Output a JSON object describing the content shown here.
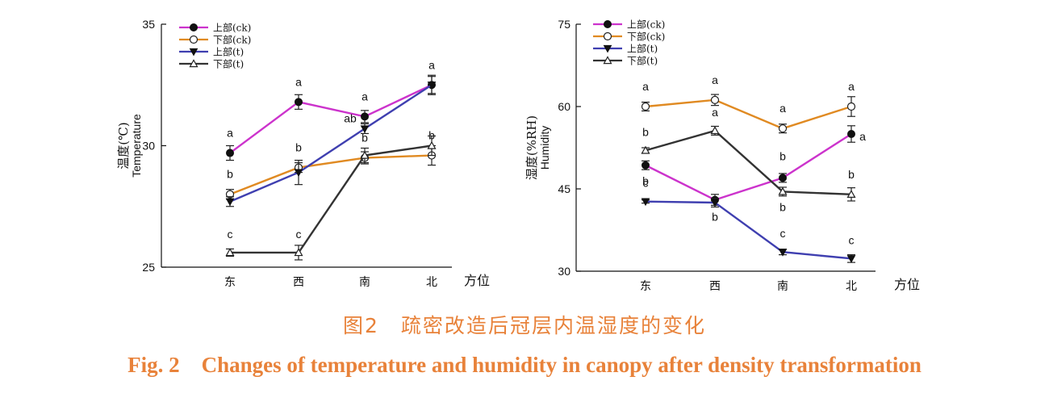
{
  "chart_data": [
    {
      "type": "line",
      "ylabel": "温度(℃)",
      "ylabel2": "Temperature",
      "xlabel": "方位",
      "categories": [
        "东",
        "西",
        "南",
        "北"
      ],
      "ylim": [
        25,
        35
      ],
      "yticks": [
        25,
        30,
        35
      ],
      "legend": "top-left",
      "series": [
        {
          "name": "上部(ck)",
          "color": "#cc33cc",
          "marker": "filled-circle",
          "values": [
            29.7,
            31.8,
            31.2,
            32.5
          ],
          "errors": [
            0.3,
            0.3,
            0.25,
            0.35
          ],
          "letters": [
            "a",
            "a",
            "a",
            "a"
          ]
        },
        {
          "name": "下部(ck)",
          "color": "#e08a22",
          "marker": "open-circle",
          "values": [
            28.0,
            29.1,
            29.5,
            29.6
          ],
          "errors": [
            0.2,
            0.2,
            0.25,
            0.4
          ],
          "letters": [
            "b",
            "b",
            "b",
            "b"
          ]
        },
        {
          "name": "上部(t)",
          "color": "#3f3fb0",
          "marker": "filled-triangle-down",
          "values": [
            27.7,
            28.9,
            30.7,
            32.5
          ],
          "errors": [
            0.2,
            0.5,
            0.2,
            0.4
          ],
          "letters": [
            "",
            "",
            "ab",
            ""
          ]
        },
        {
          "name": "下部(t)",
          "color": "#333333",
          "marker": "open-triangle-up",
          "values": [
            25.6,
            25.6,
            29.6,
            30.0
          ],
          "errors": [
            0.15,
            0.3,
            0.3,
            0.4
          ],
          "letters": [
            "c",
            "c",
            "",
            ""
          ]
        }
      ]
    },
    {
      "type": "line",
      "ylabel": "湿度(%RH)",
      "ylabel2": "Humidity",
      "xlabel": "方位",
      "categories": [
        "东",
        "西",
        "南",
        "北"
      ],
      "ylim": [
        30,
        75
      ],
      "yticks": [
        30,
        45,
        60,
        75
      ],
      "legend": "top-left",
      "series": [
        {
          "name": "上部(ck)",
          "color": "#cc33cc",
          "marker": "filled-circle",
          "values": [
            49.3,
            43.0,
            47.0,
            55.0
          ],
          "errors": [
            0.8,
            1.0,
            0.8,
            1.5
          ],
          "letters": [
            "b",
            "b",
            "b",
            "a"
          ]
        },
        {
          "name": "下部(ck)",
          "color": "#e08a22",
          "marker": "open-circle",
          "values": [
            60.0,
            61.2,
            56.0,
            60.0
          ],
          "errors": [
            0.8,
            1.0,
            0.8,
            1.8
          ],
          "letters": [
            "a",
            "a",
            "a",
            "a"
          ]
        },
        {
          "name": "上部(t)",
          "color": "#3f3fb0",
          "marker": "filled-triangle-down",
          "values": [
            42.7,
            42.5,
            33.5,
            32.3
          ],
          "errors": [
            0.3,
            0.8,
            0.5,
            0.7
          ],
          "letters": [
            "c",
            "",
            "c",
            "c"
          ]
        },
        {
          "name": "下部(t)",
          "color": "#333333",
          "marker": "open-triangle-up",
          "values": [
            52.0,
            55.6,
            44.5,
            44.0
          ],
          "errors": [
            0.5,
            0.8,
            0.8,
            1.2
          ],
          "letters": [
            "b",
            "a",
            "b",
            "b"
          ]
        }
      ]
    }
  ],
  "caption": {
    "cn": "图2　疏密改造后冠层内温湿度的变化",
    "en": "Fig. 2　Changes of temperature and humidity in canopy after density transformation"
  }
}
